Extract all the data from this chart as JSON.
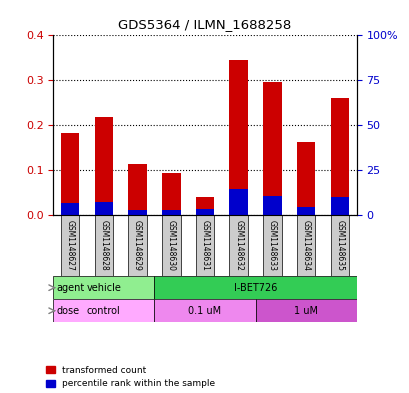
{
  "title": "GDS5364 / ILMN_1688258",
  "samples": [
    "GSM1148627",
    "GSM1148628",
    "GSM1148629",
    "GSM1148630",
    "GSM1148631",
    "GSM1148632",
    "GSM1148633",
    "GSM1148634",
    "GSM1148635"
  ],
  "red_values": [
    0.183,
    0.218,
    0.113,
    0.092,
    0.04,
    0.344,
    0.295,
    0.163,
    0.26
  ],
  "blue_values": [
    0.025,
    0.028,
    0.01,
    0.01,
    0.012,
    0.058,
    0.042,
    0.018,
    0.04
  ],
  "red_color": "#cc0000",
  "blue_color": "#0000cc",
  "ylim_left": [
    0,
    0.4
  ],
  "ylim_right": [
    0,
    100
  ],
  "yticks_left": [
    0,
    0.1,
    0.2,
    0.3,
    0.4
  ],
  "yticks_right": [
    0,
    25,
    50,
    75,
    100
  ],
  "ytick_labels_right": [
    "0",
    "25",
    "50",
    "75",
    "100%"
  ],
  "agent_labels": [
    {
      "text": "vehicle",
      "start": 0,
      "end": 3,
      "color": "#90ee90"
    },
    {
      "text": "I-BET726",
      "start": 3,
      "end": 9,
      "color": "#33cc55"
    }
  ],
  "dose_labels": [
    {
      "text": "control",
      "start": 0,
      "end": 3,
      "color": "#ffaaff"
    },
    {
      "text": "0.1 uM",
      "start": 3,
      "end": 6,
      "color": "#ee88ee"
    },
    {
      "text": "1 uM",
      "start": 6,
      "end": 9,
      "color": "#cc55cc"
    }
  ],
  "legend_red": "transformed count",
  "legend_blue": "percentile rank within the sample",
  "bar_width": 0.55,
  "agent_row_label": "agent",
  "dose_row_label": "dose",
  "sample_box_color": "#cccccc",
  "sample_text_color": "#000000",
  "left_tick_color": "#cc0000",
  "right_tick_color": "#0000cc"
}
